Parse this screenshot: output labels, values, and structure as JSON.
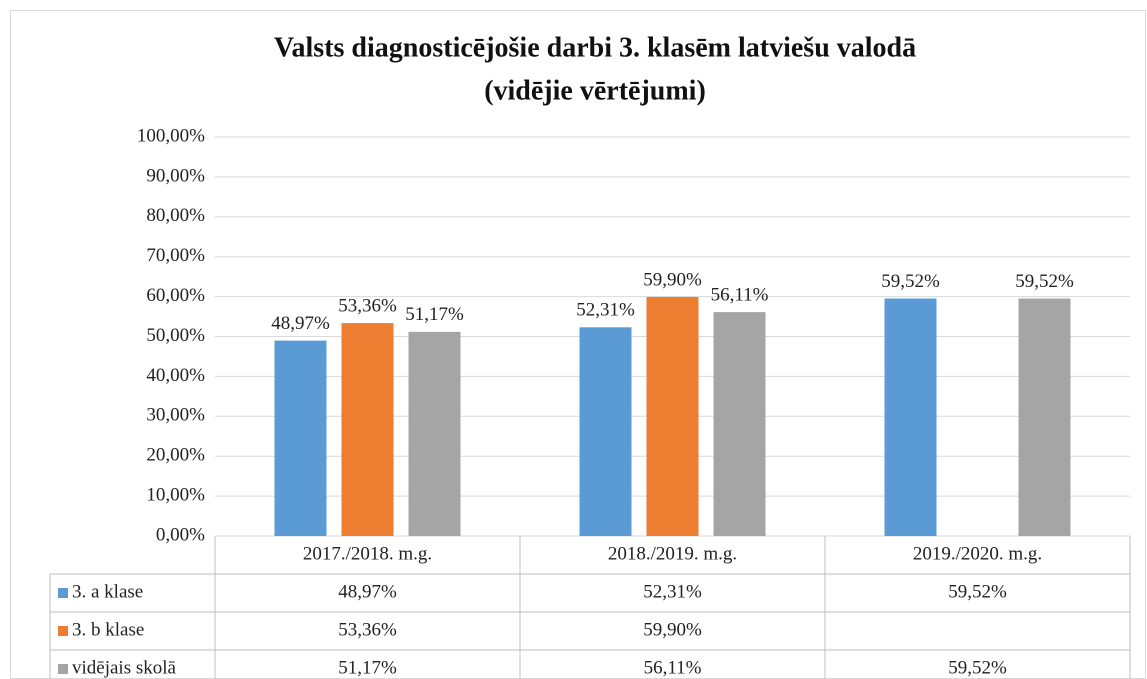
{
  "chart_data": {
    "type": "bar",
    "title": "Valsts diagnosticējošie darbi 3. klasēm latviešu valodā",
    "subtitle": "(vidējie vērtējumi)",
    "categories": [
      "2017./2018. m.g.",
      "2018./2019. m.g.",
      "2019./2020. m.g."
    ],
    "series": [
      {
        "name": "3. a klase",
        "color": "#5b9bd5",
        "values": [
          48.97,
          52.31,
          59.52
        ],
        "value_labels": [
          "48,97%",
          "52,31%",
          "59,52%"
        ]
      },
      {
        "name": "3. b klase",
        "color": "#ed7d31",
        "values": [
          53.36,
          59.9,
          null
        ],
        "value_labels": [
          "53,36%",
          "59,90%",
          null
        ]
      },
      {
        "name": "vidējais skolā",
        "color": "#a5a5a5",
        "values": [
          51.17,
          56.11,
          59.52
        ],
        "value_labels": [
          "51,17%",
          "56,11%",
          "59,52%"
        ]
      }
    ],
    "ylim": [
      0,
      100
    ],
    "yticks": [
      {
        "value": 0,
        "label": "0,00%"
      },
      {
        "value": 10,
        "label": "10,00%"
      },
      {
        "value": 20,
        "label": "20,00%"
      },
      {
        "value": 30,
        "label": "30,00%"
      },
      {
        "value": 40,
        "label": "40,00%"
      },
      {
        "value": 50,
        "label": "50,00%"
      },
      {
        "value": 60,
        "label": "60,00%"
      },
      {
        "value": 70,
        "label": "70,00%"
      },
      {
        "value": 80,
        "label": "80,00%"
      },
      {
        "value": 90,
        "label": "90,00%"
      },
      {
        "value": 100,
        "label": "100,00%"
      }
    ],
    "grid": true,
    "data_table": true
  }
}
